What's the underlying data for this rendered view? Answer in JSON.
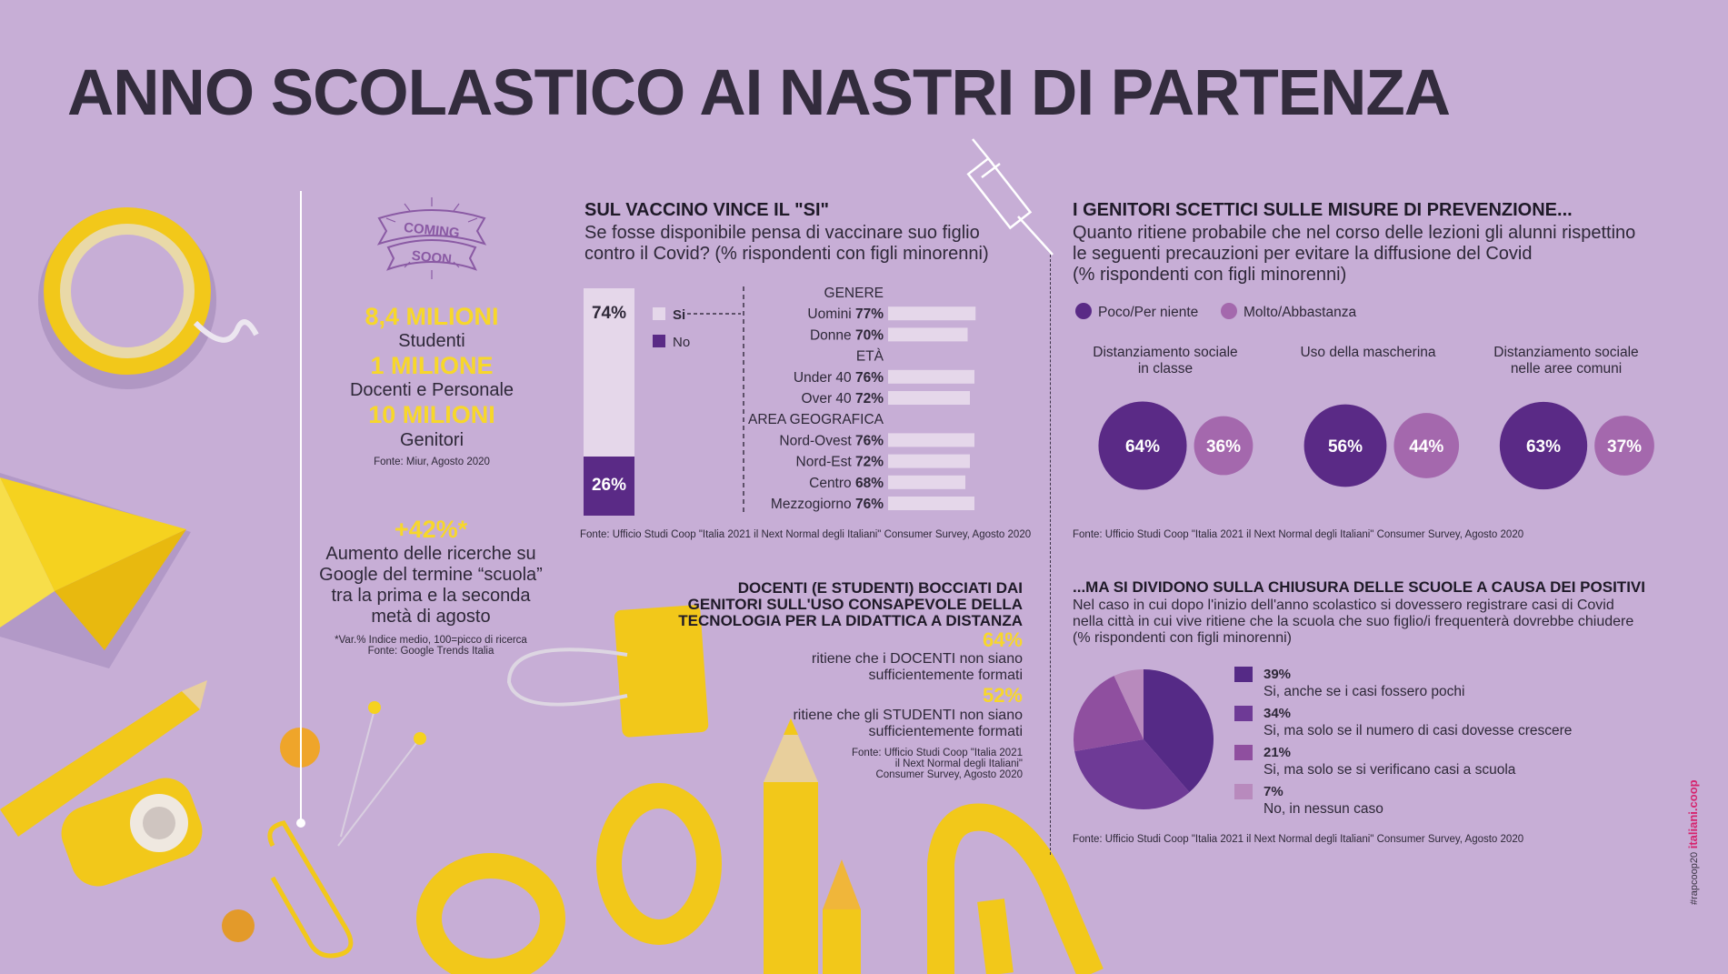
{
  "title": "ANNO SCOLASTICO AI NASTRI DI PARTENZA",
  "colors": {
    "background": "#c7aed6",
    "yellow": "#f7d72b",
    "dark_purple": "#5a2a86",
    "mid_purple": "#6e3a96",
    "light_purple": "#a468ad",
    "bar_light": "#e5d7ea"
  },
  "left": {
    "badge_line1": "COMING",
    "badge_line2": "SOON",
    "stat1_value": "8,4 MILIONI",
    "stat1_label": "Studenti",
    "stat2_value": "1 MILIONE",
    "stat2_label": "Docenti e Personale",
    "stat3_value": "10 MILIONI",
    "stat3_label": "Genitori",
    "source1": "Fonte: Miur, Agosto 2020",
    "google_value": "+42%*",
    "google_text": "Aumento delle ricerche su Google del termine “scuola” tra la prima e la seconda metà di agosto",
    "note": "*Var.% Indice medio, 100=picco di ricerca",
    "source2": "Fonte: Google Trends Italia"
  },
  "vaccine": {
    "heading": "SUL VACCINO VINCE IL \"SI\"",
    "question": "Se fosse disponibile pensa di vaccinare suo figlio contro il Covid? (% rispondenti con figli minorenni)",
    "legend_si": "Si",
    "legend_no": "No",
    "source": "Fonte: Ufficio Studi Coop \"Italia 2021 il Next Normal degli Italiani\" Consumer Survey, Agosto 2020"
  },
  "teachers": {
    "heading_line1": "DOCENTI (E STUDENTI) BOCCIATI DAI",
    "heading_line2": "GENITORI SULL'USO CONSAPEVOLE DELLA",
    "heading_line3": "TECNOLOGIA PER LA DIDATTICA A DISTANZA",
    "value1": "64%",
    "text1_line1": "ritiene che i DOCENTI non siano",
    "text1_line2": "sufficientemente formati",
    "value2": "52%",
    "text2_line1": "ritiene che gli STUDENTI non siano",
    "text2_line2": "sufficientemente formati",
    "source_line1": "Fonte: Ufficio Studi Coop \"Italia 2021",
    "source_line2": "il Next Normal degli Italiani\"",
    "source_line3": "Consumer Survey, Agosto 2020"
  },
  "prevention": {
    "heading": "I GENITORI SCETTICI SULLE MISURE DI PREVENZIONE...",
    "question_line1": "Quanto ritiene probabile che nel corso delle lezioni gli alunni rispettino",
    "question_line2": "le seguenti precauzioni per evitare la diffusione del Covid",
    "question_line3": "(% rispondenti con figli minorenni)",
    "legend_poco": "Poco/Per niente",
    "legend_molto": "Molto/Abbastanza",
    "source": "Fonte: Ufficio Studi Coop \"Italia 2021 il Next Normal degli Italiani\" Consumer Survey, Agosto 2020"
  },
  "closure": {
    "heading": "...MA SI DIVIDONO SULLA CHIUSURA DELLE SCUOLE A CAUSA DEI POSITIVI",
    "question_line1": "Nel caso in cui dopo l'inizio dell'anno scolastico si dovessero registrare casi di Covid",
    "question_line2": "nella città in cui vive ritiene che la scuola che suo figlio/i frequenterà dovrebbe chiudere",
    "question_line3": "(% rispondenti con figli minorenni)",
    "source": "Fonte: Ufficio Studi Coop \"Italia 2021 il Next Normal degli Italiani\" Consumer Survey, Agosto 2020"
  },
  "side_tag_hash": "#rapcoop20",
  "side_tag_brand": "italiani.coop",
  "chart_data": [
    {
      "type": "bar",
      "title": "SUL VACCINO VINCE IL \"SI\"",
      "categories": [
        "Si",
        "No"
      ],
      "values": [
        74,
        26
      ],
      "labels": [
        "74%",
        "26%"
      ]
    },
    {
      "type": "bar",
      "groups": [
        {
          "header": "GENERE",
          "rows": [
            {
              "label": "Uomini",
              "value": 77
            },
            {
              "label": "Donne",
              "value": 70
            }
          ]
        },
        {
          "header": "ETÀ",
          "rows": [
            {
              "label": "Under 40",
              "value": 76
            },
            {
              "label": "Over 40",
              "value": 72
            }
          ]
        },
        {
          "header": "AREA GEOGRAFICA",
          "rows": [
            {
              "label": "Nord-Ovest",
              "value": 76
            },
            {
              "label": "Nord-Est",
              "value": 72
            },
            {
              "label": "Centro",
              "value": 68
            },
            {
              "label": "Mezzogiorno",
              "value": 76
            }
          ]
        }
      ]
    },
    {
      "type": "pie",
      "title": "I GENITORI SCETTICI SULLE MISURE DI PREVENZIONE...",
      "series_names": [
        "Poco/Per niente",
        "Molto/Abbastanza"
      ],
      "items": [
        {
          "label_line1": "Distanziamento sociale",
          "label_line2": "in classe",
          "poco": 64,
          "molto": 36
        },
        {
          "label_line1": "Uso della mascherina",
          "label_line2": "",
          "poco": 56,
          "molto": 44
        },
        {
          "label_line1": "Distanziamento sociale",
          "label_line2": "nelle aree comuni",
          "poco": 63,
          "molto": 37
        }
      ]
    },
    {
      "type": "pie",
      "title": "...MA SI DIVIDONO SULLA CHIUSURA DELLE SCUOLE A CAUSA DEI POSITIVI",
      "slices": [
        {
          "value": 39,
          "label": "39%",
          "text": "Si, anche se i casi fossero pochi",
          "color": "#552a86"
        },
        {
          "value": 34,
          "label": "34%",
          "text": "Si, ma solo se il numero di casi dovesse crescere",
          "color": "#6e3a96"
        },
        {
          "value": 21,
          "label": "21%",
          "text": "Si, ma solo se si verificano casi a scuola",
          "color": "#8f4f9f"
        },
        {
          "value": 7,
          "label": "7%",
          "text": "No, in nessun caso",
          "color": "#b88abd"
        }
      ]
    }
  ]
}
